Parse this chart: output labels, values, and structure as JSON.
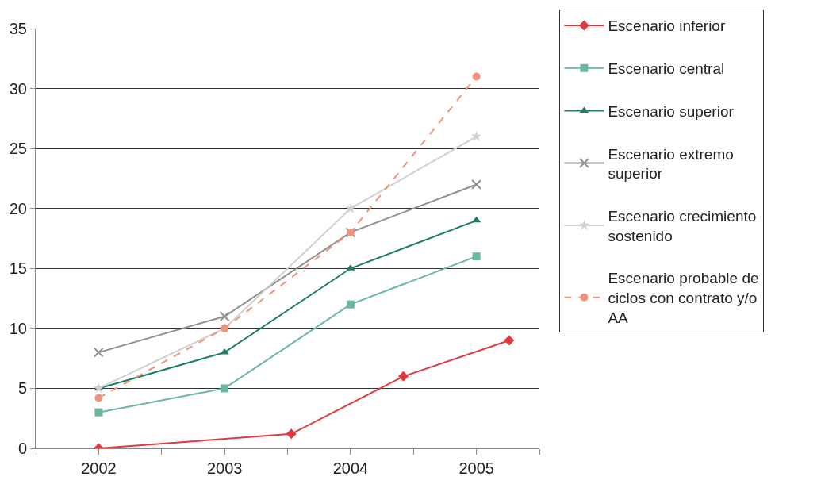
{
  "chart_data": {
    "type": "line",
    "xlim": [
      2001.5,
      2005.5
    ],
    "xticks": [
      {
        "value": 2001.5,
        "label": null
      },
      {
        "value": 2002,
        "label": "2002"
      },
      {
        "value": 2002.5,
        "label": null
      },
      {
        "value": 2003,
        "label": "2003"
      },
      {
        "value": 2003.5,
        "label": null
      },
      {
        "value": 2004,
        "label": "2004"
      },
      {
        "value": 2004.5,
        "label": null
      },
      {
        "value": 2005,
        "label": "2005"
      },
      {
        "value": 2005.5,
        "label": null
      }
    ],
    "ylim": [
      0,
      35
    ],
    "yticks": [
      0,
      5,
      10,
      15,
      20,
      25,
      30,
      35
    ],
    "grid": "y",
    "legend": "right",
    "series": [
      {
        "name": "Escenario inferior",
        "color": "#e0393e",
        "marker": "diamond",
        "x": [
          2002,
          2003.53,
          2004.42,
          2005.26
        ],
        "values": [
          0,
          1.2,
          6,
          9
        ]
      },
      {
        "name": "Escenario central",
        "color": "#6ab89a",
        "marker": "square",
        "x": [
          2002,
          2003,
          2004,
          2005
        ],
        "values": [
          3,
          5,
          12,
          16
        ]
      },
      {
        "name": "Escenario superior",
        "color": "#1a8060",
        "marker": "triangle",
        "x": [
          2002,
          2003,
          2004,
          2005
        ],
        "values": [
          5,
          8,
          15,
          19
        ]
      },
      {
        "name": "Escenario extremo superior",
        "color": "#8f8f8f",
        "marker": "cross",
        "x": [
          2002,
          2003,
          2004,
          2005
        ],
        "values": [
          8,
          11,
          18,
          22
        ]
      },
      {
        "name": "Escenario crecimiento sostenido",
        "color": "#d0d0d0",
        "marker": "star",
        "x": [
          2002,
          2003,
          2004,
          2005
        ],
        "values": [
          5,
          10,
          20,
          26
        ]
      },
      {
        "name": "Escenario probable de ciclos con contrato y/o AA",
        "color": "#f0937d",
        "marker": "circle",
        "line_style": "dashed",
        "x": [
          2002,
          2003,
          2004,
          2005
        ],
        "values": [
          4.2,
          10,
          18,
          31
        ]
      }
    ]
  }
}
